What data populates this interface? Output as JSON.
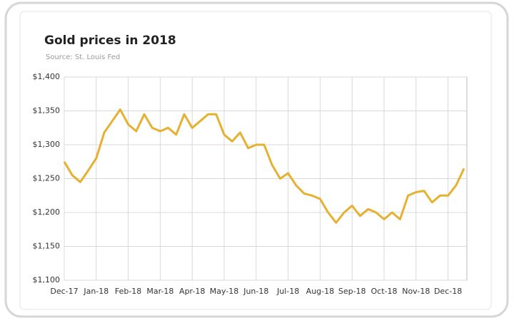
{
  "chart_data": {
    "type": "line",
    "title": "Gold prices in 2018",
    "subtitle": "Source: St. Louis Fed",
    "categories": [
      "Dec-17",
      null,
      null,
      null,
      "Jan-18",
      null,
      null,
      null,
      "Feb-18",
      null,
      null,
      null,
      "Mar-18",
      null,
      null,
      null,
      "Apr-18",
      null,
      null,
      null,
      "May-18",
      null,
      null,
      null,
      "Jun-18",
      null,
      null,
      null,
      "Jul-18",
      null,
      null,
      null,
      "Aug-18",
      null,
      null,
      null,
      "Sep-18",
      null,
      null,
      null,
      "Oct-18",
      null,
      null,
      null,
      "Nov-18",
      null,
      null,
      null,
      "Dec-18",
      null,
      null
    ],
    "values": [
      1275,
      1255,
      1245,
      1262,
      1280,
      1318,
      1335,
      1352,
      1330,
      1320,
      1345,
      1325,
      1320,
      1325,
      1315,
      1345,
      1325,
      1335,
      1345,
      1345,
      1315,
      1305,
      1318,
      1295,
      1300,
      1300,
      1270,
      1250,
      1258,
      1240,
      1228,
      1225,
      1220,
      1200,
      1185,
      1200,
      1210,
      1195,
      1205,
      1200,
      1190,
      1200,
      1190,
      1225,
      1230,
      1232,
      1215,
      1225,
      1225,
      1240,
      1265
    ],
    "color": "#e6b030",
    "ylim": [
      1100,
      1400
    ],
    "yticks": [
      {
        "value": 1100,
        "label": "$1,100"
      },
      {
        "value": 1150,
        "label": "$1,150"
      },
      {
        "value": 1200,
        "label": "$1,200"
      },
      {
        "value": 1250,
        "label": "$1,250"
      },
      {
        "value": 1300,
        "label": "$1,300"
      },
      {
        "value": 1350,
        "label": "$1,350"
      },
      {
        "value": 1400,
        "label": "$1,400"
      }
    ],
    "grid": true
  }
}
